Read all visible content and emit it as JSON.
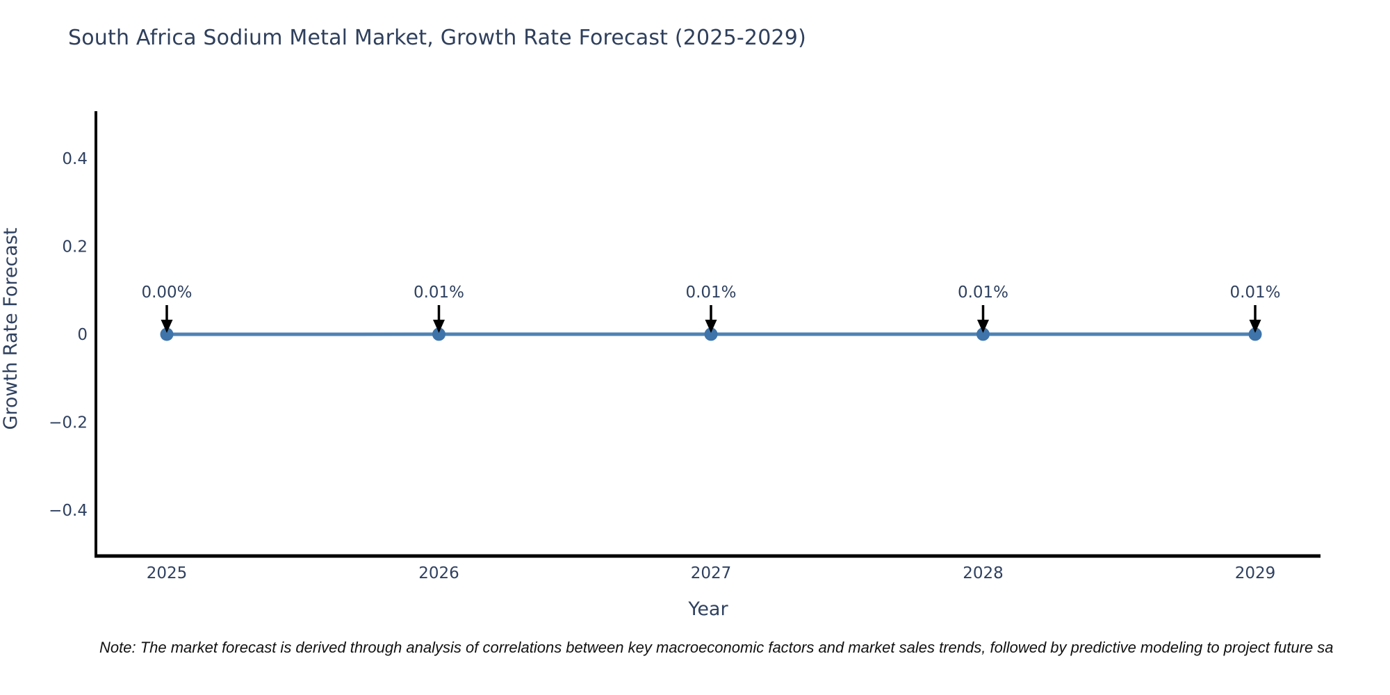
{
  "title": "South Africa Sodium Metal Market, Growth Rate Forecast (2025-2029)",
  "note": "Note: The market forecast is derived through analysis of correlations between key macroeconomic factors and market sales trends, followed by predictive modeling to project future sa",
  "chart_data": {
    "type": "line",
    "x": [
      2025,
      2026,
      2027,
      2028,
      2029
    ],
    "values": [
      0.0,
      0.01,
      0.01,
      0.01,
      0.01
    ],
    "values_unit": "percent",
    "point_labels": [
      "0.00%",
      "0.01%",
      "0.01%",
      "0.01%",
      "0.01%"
    ],
    "title": "South Africa Sodium Metal Market, Growth Rate Forecast (2025-2029)",
    "xlabel": "Year",
    "ylabel": "Growth Rate Forecast",
    "xtick_labels": [
      "2025",
      "2026",
      "2027",
      "2028",
      "2029"
    ],
    "yticks": [
      0.4,
      0.2,
      0,
      -0.2,
      -0.4
    ],
    "ytick_labels": [
      "0.4",
      "0.2",
      "0",
      "−0.2",
      "−0.4"
    ],
    "ylim": [
      -0.5,
      0.5
    ],
    "xlim": [
      2024.74,
      2029.24
    ],
    "grid": false,
    "legend": "none",
    "line_color": "#4e82b4",
    "marker_color": "#3e74aa",
    "axis_color": "#000000",
    "tick_text_color": "#2f4160",
    "title_color": "#2e3f5c",
    "annotation_arrow_color": "#000000"
  }
}
